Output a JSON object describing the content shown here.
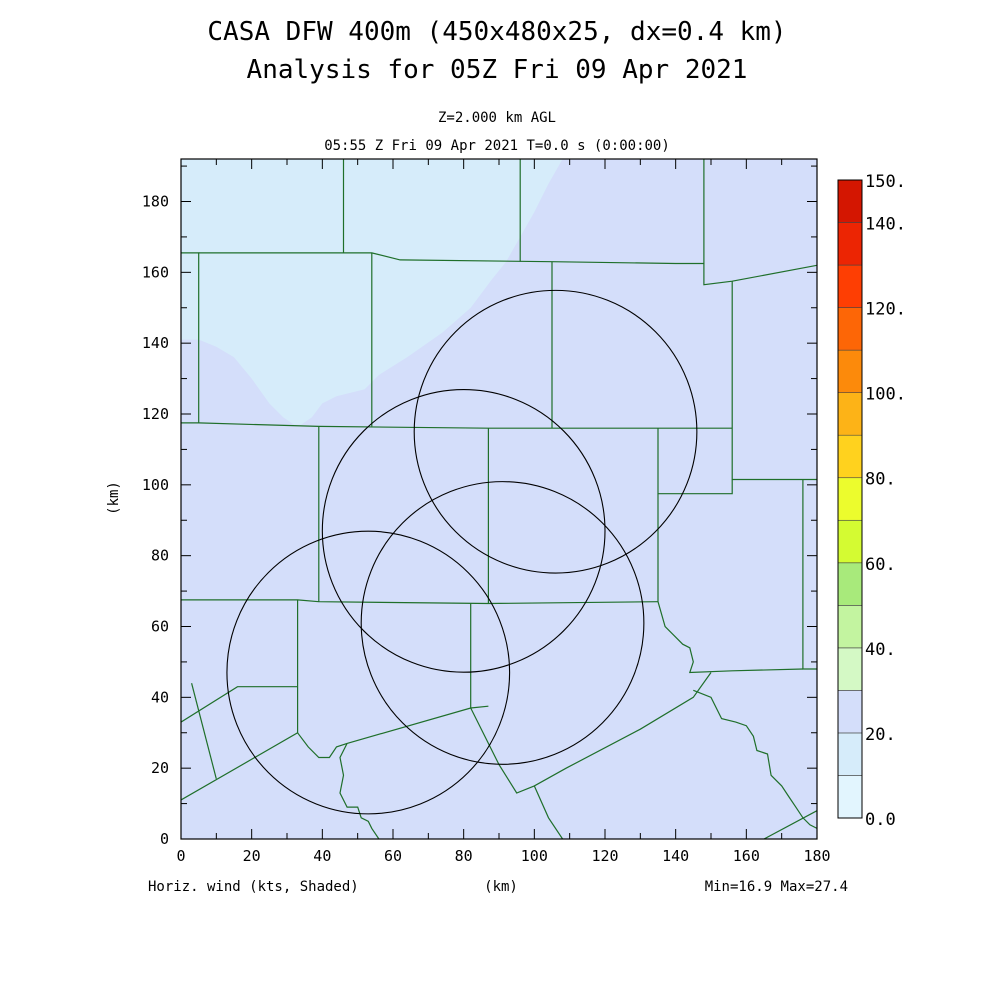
{
  "header": {
    "title_line1": "CASA DFW 400m (450x480x25, dx=0.4 km)",
    "title_line2": "Analysis for 05Z Fri 09 Apr 2021",
    "level": "Z=2.000 km AGL",
    "valid_time": "05:55 Z Fri 09 Apr 2021   T=0.0 s (0:00:00)"
  },
  "footer": {
    "field_label": "Horiz. wind (kts, Shaded)",
    "x_unit": "(km)",
    "minmax": "Min=16.9 Max=27.4"
  },
  "colors": {
    "background_field": "#d4defa",
    "low_wind_field": "#d6ecfa",
    "county_lines": "#1f6f2a",
    "radar_rings": "#000000"
  },
  "chart_data": {
    "type": "heatmap",
    "xlabel": "(km)",
    "ylabel": "(km)",
    "xlim": [
      0,
      180
    ],
    "ylim": [
      0,
      192
    ],
    "x_ticks": [
      "0",
      "20",
      "40",
      "60",
      "80",
      "100",
      "120",
      "140",
      "160",
      "180"
    ],
    "x_tick_values": [
      0,
      20,
      40,
      60,
      80,
      100,
      120,
      140,
      160,
      180
    ],
    "y_ticks": [
      "0",
      "20",
      "40",
      "60",
      "80",
      "100",
      "120",
      "140",
      "160",
      "180"
    ],
    "y_tick_values": [
      0,
      20,
      40,
      60,
      80,
      100,
      120,
      140,
      160,
      180
    ],
    "field_range": {
      "min": 16.9,
      "max": 27.4,
      "units": "kts"
    },
    "shaded_regions": [
      {
        "level_range": [
          10,
          20
        ],
        "color": "#d6ecfa",
        "polygon_km": [
          [
            0,
            192
          ],
          [
            108,
            192
          ],
          [
            104,
            185
          ],
          [
            100,
            177
          ],
          [
            96,
            170
          ],
          [
            92,
            163
          ],
          [
            88,
            158
          ],
          [
            82,
            150
          ],
          [
            74,
            143
          ],
          [
            64,
            136
          ],
          [
            56,
            131
          ],
          [
            52,
            127
          ],
          [
            44,
            125
          ],
          [
            40,
            123
          ],
          [
            37,
            119
          ],
          [
            34,
            117
          ],
          [
            32,
            117
          ],
          [
            29,
            119
          ],
          [
            25,
            123
          ],
          [
            20,
            130
          ],
          [
            15,
            136
          ],
          [
            10,
            139
          ],
          [
            5,
            141
          ],
          [
            0,
            141
          ]
        ]
      }
    ],
    "radar_rings": [
      {
        "center_km": [
          53,
          47
        ],
        "radius_km": 40
      },
      {
        "center_km": [
          80,
          87
        ],
        "radius_km": 40
      },
      {
        "center_km": [
          91,
          61
        ],
        "radius_km": 40
      },
      {
        "center_km": [
          106,
          115
        ],
        "radius_km": 40
      }
    ],
    "county_boundaries_km": [
      [
        [
          0,
          117.5
        ],
        [
          5,
          117.5
        ],
        [
          5,
          165.5
        ],
        [
          0,
          165.5
        ]
      ],
      [
        [
          5,
          165.5
        ],
        [
          46,
          165.5
        ],
        [
          46,
          192
        ]
      ],
      [
        [
          46,
          165.5
        ],
        [
          54,
          165.5
        ],
        [
          62,
          163.5
        ],
        [
          105,
          163
        ],
        [
          140,
          162.5
        ],
        [
          148,
          162.5
        ]
      ],
      [
        [
          96,
          192
        ],
        [
          96,
          163
        ]
      ],
      [
        [
          148,
          192
        ],
        [
          148,
          156.5
        ],
        [
          156,
          157.5
        ],
        [
          180,
          162
        ]
      ],
      [
        [
          5,
          117.5
        ],
        [
          39,
          116.5
        ],
        [
          87,
          116
        ],
        [
          156,
          116
        ]
      ],
      [
        [
          54,
          165.5
        ],
        [
          54,
          116.5
        ]
      ],
      [
        [
          105,
          163
        ],
        [
          105,
          116
        ]
      ],
      [
        [
          156,
          157.5
        ],
        [
          156,
          116
        ],
        [
          156,
          101.5
        ],
        [
          180,
          101.5
        ]
      ],
      [
        [
          39,
          116.5
        ],
        [
          39,
          67
        ]
      ],
      [
        [
          87,
          116
        ],
        [
          87,
          66.5
        ]
      ],
      [
        [
          135,
          116
        ],
        [
          135,
          97.5
        ],
        [
          156,
          97.5
        ],
        [
          156,
          101.5
        ]
      ],
      [
        [
          0,
          67.5
        ],
        [
          33,
          67.5
        ],
        [
          39,
          67
        ],
        [
          87,
          66.5
        ],
        [
          135,
          67
        ]
      ],
      [
        [
          176,
          101.5
        ],
        [
          176,
          48
        ],
        [
          180,
          48
        ]
      ],
      [
        [
          135,
          97.5
        ],
        [
          135,
          67
        ],
        [
          137,
          60
        ],
        [
          142,
          55
        ],
        [
          144,
          54
        ],
        [
          145,
          50
        ],
        [
          144,
          47
        ],
        [
          156,
          47.5
        ],
        [
          176,
          48
        ]
      ],
      [
        [
          33,
          67.5
        ],
        [
          33,
          30
        ],
        [
          0,
          11
        ]
      ],
      [
        [
          0,
          33
        ],
        [
          16,
          43
        ],
        [
          33,
          43
        ]
      ],
      [
        [
          3,
          44
        ],
        [
          10,
          17
        ]
      ],
      [
        [
          33,
          30
        ],
        [
          36,
          26
        ],
        [
          39,
          23
        ],
        [
          42,
          23
        ],
        [
          44,
          26
        ],
        [
          47,
          27
        ],
        [
          82,
          37
        ],
        [
          87,
          37.5
        ]
      ],
      [
        [
          82,
          66.5
        ],
        [
          82,
          37
        ]
      ],
      [
        [
          82,
          37
        ],
        [
          90,
          21
        ],
        [
          95,
          13
        ],
        [
          100,
          15
        ],
        [
          109,
          20
        ],
        [
          130,
          31
        ],
        [
          145,
          40
        ],
        [
          150,
          47
        ]
      ],
      [
        [
          47,
          27
        ],
        [
          45,
          23
        ],
        [
          46,
          18
        ],
        [
          45,
          13
        ],
        [
          47,
          9
        ],
        [
          50,
          9
        ],
        [
          51,
          6
        ],
        [
          53,
          5
        ],
        [
          54,
          3
        ],
        [
          56,
          0
        ]
      ],
      [
        [
          100,
          15
        ],
        [
          104,
          6
        ],
        [
          108,
          0
        ]
      ],
      [
        [
          145,
          42
        ],
        [
          150,
          40
        ],
        [
          153,
          34
        ],
        [
          157,
          33
        ],
        [
          160,
          32
        ],
        [
          162,
          29
        ],
        [
          163,
          25
        ],
        [
          166,
          24
        ],
        [
          167,
          18
        ],
        [
          170,
          15
        ],
        [
          172,
          12
        ],
        [
          174,
          9
        ],
        [
          176,
          6
        ],
        [
          178,
          4
        ],
        [
          180,
          3
        ]
      ],
      [
        [
          165,
          0
        ],
        [
          180,
          8
        ]
      ]
    ],
    "colorbar": {
      "min": 0,
      "max": 150,
      "interval": 10,
      "labels": [
        "0.0",
        "20.",
        "40.",
        "60.",
        "80.",
        "100.",
        "120.",
        "140.",
        "150."
      ],
      "label_values": [
        0,
        20,
        40,
        60,
        80,
        100,
        120,
        140,
        150
      ],
      "bin_colors": [
        "#e2f5fe",
        "#d6ecfa",
        "#d4defa",
        "#d4f9c5",
        "#c3f4a0",
        "#a8ea7b",
        "#d4fb32",
        "#ecfc2d",
        "#ffd21e",
        "#fdb317",
        "#fc8a0b",
        "#fd6606",
        "#fe3e03",
        "#ec2503",
        "#d41601"
      ],
      "top_color": "#b50000"
    }
  }
}
